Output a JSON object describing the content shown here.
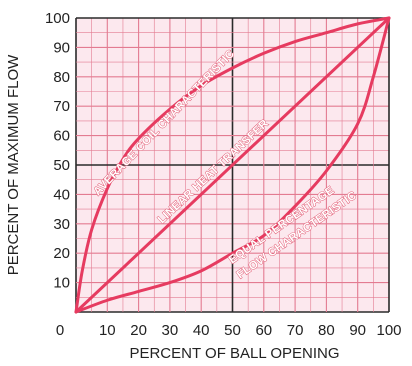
{
  "chart_data": {
    "type": "line",
    "title": "",
    "xlabel": "PERCENT OF BALL OPENING",
    "ylabel": "PERCENT OF MAXIMUM FLOW",
    "xlim": [
      0,
      100
    ],
    "ylim": [
      0,
      100
    ],
    "x_ticks": [
      "0",
      "10",
      "20",
      "30",
      "40",
      "50",
      "60",
      "70",
      "80",
      "90",
      "100"
    ],
    "y_ticks": [
      "10",
      "20",
      "30",
      "40",
      "50",
      "60",
      "70",
      "80",
      "90",
      "100"
    ],
    "grid": true,
    "colors": {
      "background": "#fce8ee",
      "grid": "#e37b91",
      "grid_major": "#2a2a2a",
      "curve": "#e63b60"
    },
    "series": [
      {
        "name": "AVERAGE COIL CHARACTERISTIC",
        "x": [
          0,
          2,
          5,
          10,
          15,
          20,
          30,
          40,
          50,
          60,
          70,
          80,
          90,
          100
        ],
        "y": [
          0,
          14,
          28,
          42,
          52,
          59,
          69,
          77,
          83,
          88,
          92,
          95,
          98,
          100
        ]
      },
      {
        "name": "LINEAR HEAT TRANSFER",
        "x": [
          0,
          100
        ],
        "y": [
          0,
          100
        ]
      },
      {
        "name": "EQUAL PERCENTAGE FLOW CHARACTERISTIC",
        "x": [
          0,
          10,
          20,
          30,
          40,
          50,
          60,
          70,
          80,
          90,
          95,
          100
        ],
        "y": [
          0,
          4,
          7,
          10,
          14,
          20,
          26,
          36,
          48,
          64,
          80,
          100
        ]
      }
    ],
    "annotations": [
      {
        "lines": [
          "AVERAGE COIL CHARACTERISTIC"
        ]
      },
      {
        "lines": [
          "LINEAR HEAT TRANSFER"
        ]
      },
      {
        "lines": [
          "EQUAL PERCENTAGE",
          "FLOW CHARACTERISTIC"
        ]
      }
    ]
  }
}
